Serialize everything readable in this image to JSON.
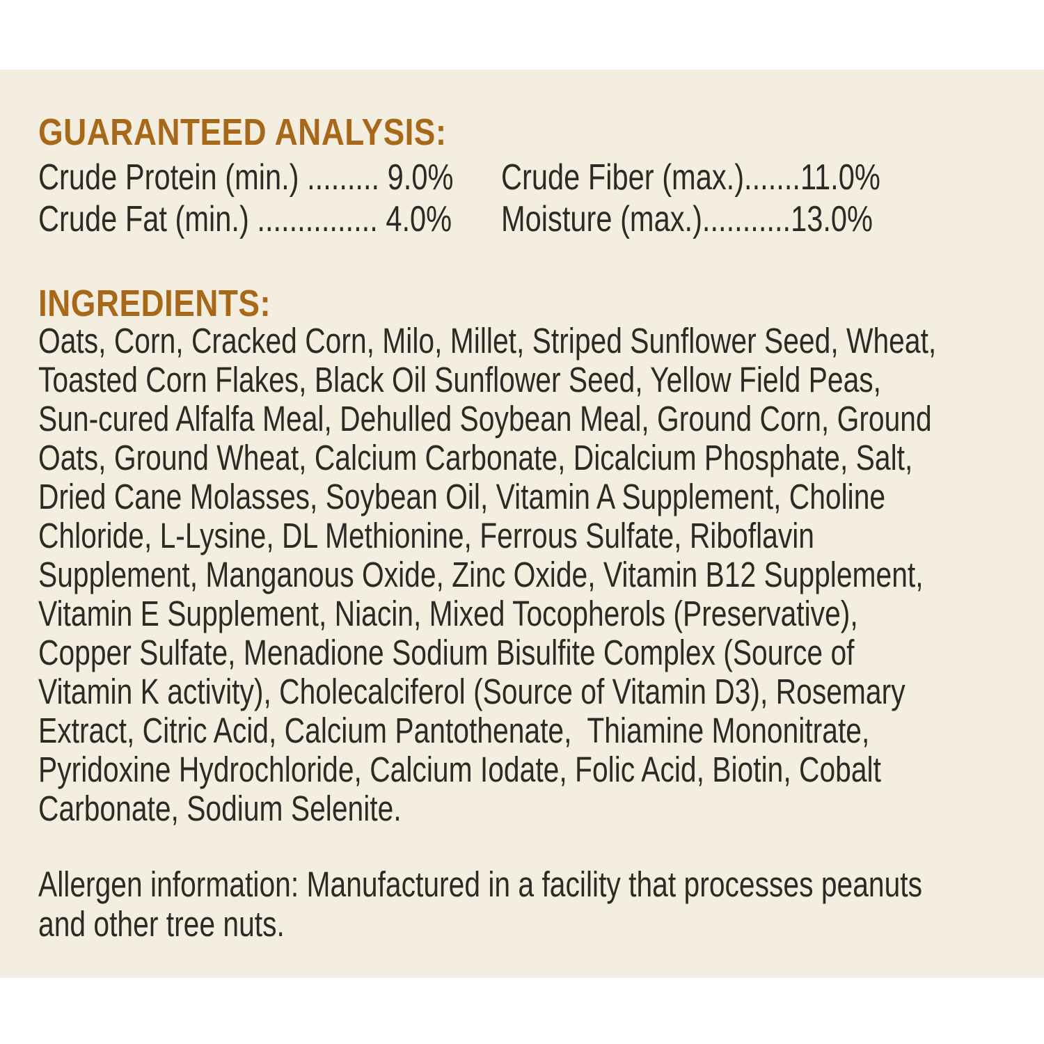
{
  "colors": {
    "page_background": "#ffffff",
    "panel_background": "#f3eee0",
    "heading_text": "#a7681a",
    "body_text": "#2b2a25"
  },
  "guaranteed_analysis": {
    "heading": "GUARANTEED ANALYSIS:",
    "rows": [
      {
        "left": {
          "label": "Crude Protein (min.)",
          "dots": " ......... ",
          "value": "9.0%"
        },
        "right": {
          "label": "Crude Fiber (max.)",
          "dots": ".......",
          "value": "11.0%"
        }
      },
      {
        "left": {
          "label": "Crude Fat (min.)",
          "dots": " ............... ",
          "value": "4.0%"
        },
        "right": {
          "label": "Moisture (max.)",
          "dots": "...........",
          "value": "13.0%"
        }
      }
    ]
  },
  "ingredients": {
    "heading": "INGREDIENTS:",
    "lines": [
      "Oats, Corn, Cracked Corn, Milo, Millet, Striped Sunflower Seed, Wheat,",
      "Toasted Corn Flakes, Black Oil Sunflower Seed, Yellow Field Peas,",
      "Sun-cured Alfalfa Meal, Dehulled Soybean Meal, Ground Corn, Ground",
      "Oats, Ground Wheat, Calcium Carbonate, Dicalcium Phosphate, Salt,",
      "Dried Cane Molasses, Soybean Oil, Vitamin A Supplement, Choline",
      "Chloride, L-Lysine, DL Methionine, Ferrous Sulfate, Riboflavin",
      "Supplement, Manganous Oxide, Zinc Oxide, Vitamin B12 Supplement,",
      "Vitamin E Supplement, Niacin, Mixed Tocopherols (Preservative),",
      "Copper Sulfate, Menadione Sodium Bisulfite Complex (Source of",
      "Vitamin K activity), Cholecalciferol (Source of Vitamin D3), Rosemary",
      "Extract, Citric Acid, Calcium Pantothenate,  Thiamine Mononitrate,",
      "Pyridoxine Hydrochloride, Calcium Iodate, Folic Acid, Biotin, Cobalt",
      "Carbonate, Sodium Selenite."
    ]
  },
  "allergen": {
    "lines": [
      "Allergen information: Manufactured in a facility that processes peanuts",
      "and other tree nuts."
    ]
  }
}
